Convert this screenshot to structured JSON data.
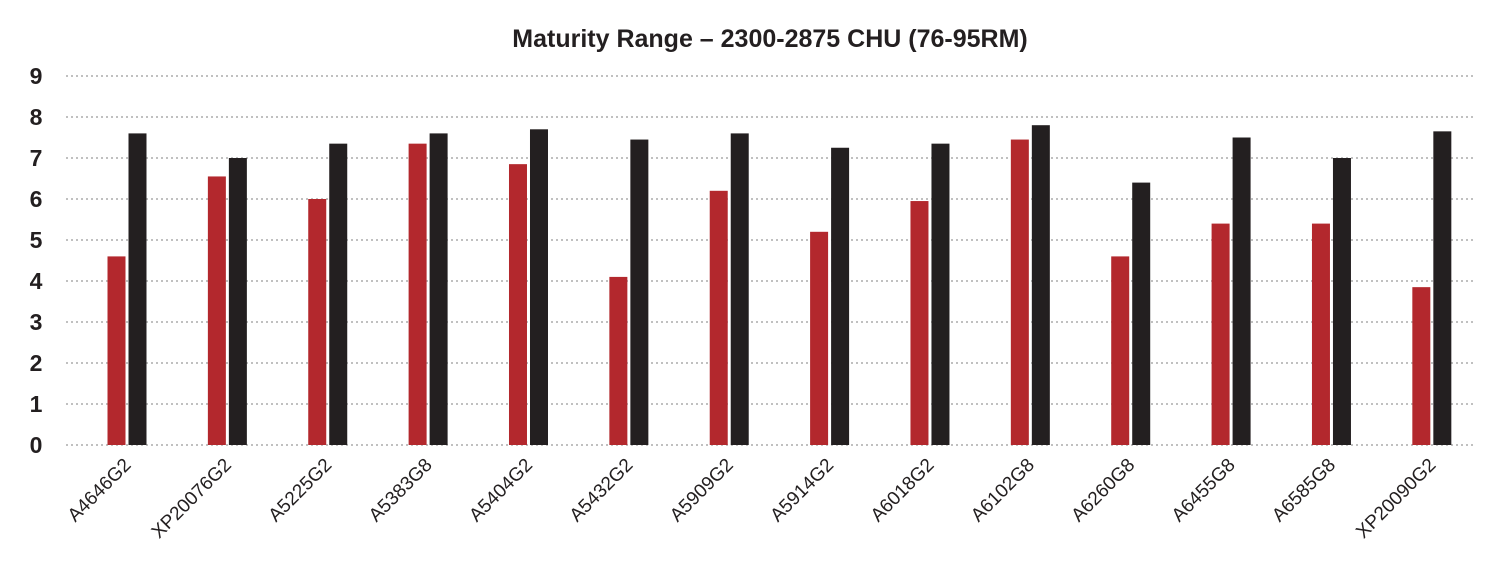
{
  "chart_data": {
    "type": "bar",
    "title": "Maturity Range – 2300-2875 CHU (76-95RM)",
    "xlabel": "",
    "ylabel": "",
    "ylim": [
      0,
      9
    ],
    "yticks": [
      "0",
      "1",
      "2",
      "3",
      "4",
      "5",
      "6",
      "7",
      "8",
      "9"
    ],
    "grid": true,
    "legend": "none",
    "categories": [
      "A4646G2",
      "XP20076G2",
      "A5225G2",
      "A5383G8",
      "A5404G2",
      "A5432G2",
      "A5909G2",
      "A5914G2",
      "A6018G2",
      "A6102G8",
      "A6260G8",
      "A6455G8",
      "A6585G8",
      "XP20090G2"
    ],
    "series": [
      {
        "color": "#b3282d",
        "values": [
          4.6,
          6.55,
          6.0,
          7.35,
          6.85,
          4.1,
          6.2,
          5.2,
          5.95,
          7.45,
          4.6,
          5.4,
          5.4,
          3.85
        ]
      },
      {
        "color": "#231f20",
        "values": [
          7.6,
          7.0,
          7.35,
          7.6,
          7.7,
          7.45,
          7.6,
          7.25,
          7.35,
          7.8,
          6.4,
          7.5,
          7.0,
          7.65
        ]
      }
    ]
  }
}
